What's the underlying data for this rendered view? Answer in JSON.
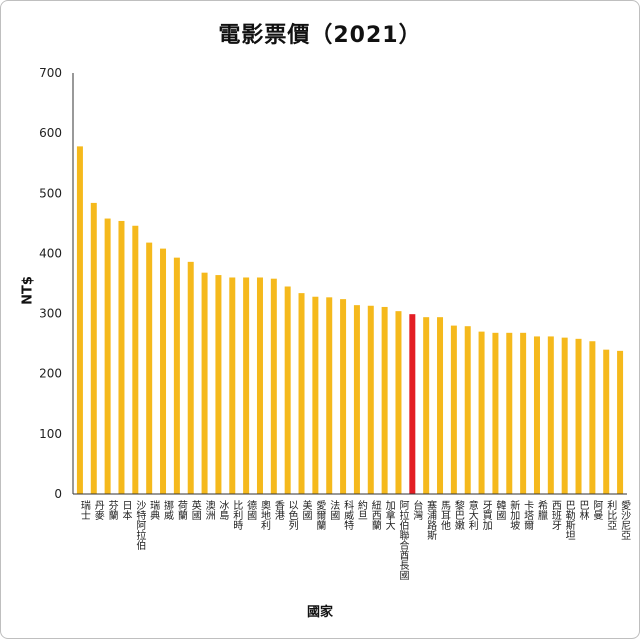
{
  "chart_data": {
    "type": "bar",
    "title": "電影票價（2021）",
    "xlabel": "國家",
    "ylabel": "NT$",
    "ylim": [
      0,
      700
    ],
    "yticks": [
      0,
      100,
      200,
      300,
      400,
      500,
      600,
      700
    ],
    "grid": false,
    "legend": "none",
    "bar_color": "#F5B91C",
    "highlight_color": "#E31E24",
    "highlight_category": "台灣",
    "categories": [
      "瑞士",
      "丹麥",
      "芬蘭",
      "日本",
      "沙特阿拉伯",
      "瑞典",
      "挪威",
      "荷蘭",
      "英國",
      "澳洲",
      "冰島",
      "比利時",
      "德國",
      "奧地利",
      "香港",
      "以色列",
      "美國",
      "愛爾蘭",
      "法國",
      "科威特",
      "約旦",
      "紐西蘭",
      "加拿大",
      "阿拉伯聯合酋長國",
      "台灣",
      "塞浦路斯",
      "馬耳他",
      "黎巴嫩",
      "意大利",
      "牙買加",
      "韓國",
      "新加坡",
      "卡塔爾",
      "希臘",
      "西班牙",
      "巴勒斯坦",
      "巴林",
      "阿曼",
      "利比亞",
      "愛沙尼亞"
    ],
    "values": [
      578,
      484,
      458,
      454,
      446,
      418,
      408,
      393,
      386,
      368,
      364,
      360,
      360,
      360,
      358,
      345,
      334,
      328,
      327,
      324,
      314,
      313,
      311,
      304,
      299,
      294,
      294,
      280,
      279,
      270,
      268,
      268,
      268,
      262,
      262,
      260,
      258,
      254,
      240,
      238
    ]
  }
}
